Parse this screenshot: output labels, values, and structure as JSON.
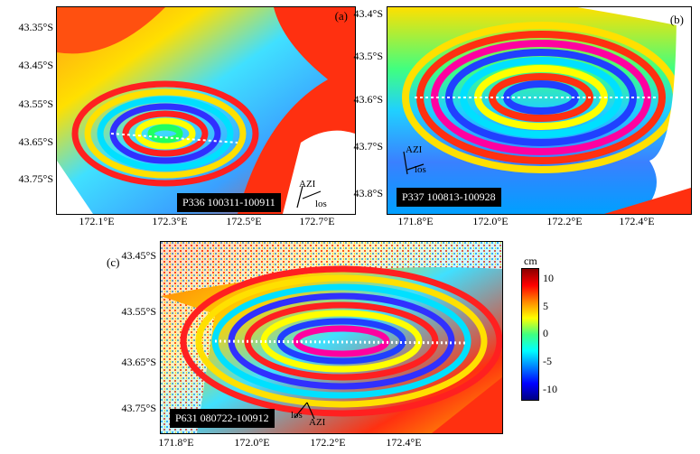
{
  "panels": [
    {
      "letter": "(a)",
      "track_label": "P336 100311-100911",
      "y_ticks": [
        "43.35°S",
        "43.45°S",
        "43.55°S",
        "43.65°S",
        "43.75°S"
      ],
      "x_ticks": [
        "172.1°E",
        "172.3°E",
        "172.5°E",
        "172.7°E"
      ],
      "azimuth_label": "AZI",
      "los_label": "los"
    },
    {
      "letter": "(b)",
      "track_label": "P337 100813-100928",
      "y_ticks": [
        "43.4°S",
        "43.5°S",
        "43.6°S",
        "43.7°S",
        "43.8°S"
      ],
      "x_ticks": [
        "171.8°E",
        "172.0°E",
        "172.2°E",
        "172.4°E"
      ],
      "azimuth_label": "AZI",
      "los_label": "los"
    },
    {
      "letter": "(c)",
      "track_label": "P631 080722-100912",
      "y_ticks": [
        "43.45°S",
        "43.55°S",
        "43.65°S",
        "43.75°S"
      ],
      "x_ticks": [
        "171.8°E",
        "172.0°E",
        "172.2°E",
        "172.4°E"
      ],
      "azimuth_label": "AZI",
      "los_label": "los"
    }
  ],
  "colorbar": {
    "unit": "cm",
    "ticks": [
      "10",
      "5",
      "0",
      "-5",
      "-10"
    ],
    "range_cm": [
      -12,
      12
    ],
    "colors": [
      "#8b0000",
      "#ff0000",
      "#ff8800",
      "#ffff00",
      "#40ff80",
      "#00ffff",
      "#0080ff",
      "#0000ff",
      "#000080"
    ]
  }
}
